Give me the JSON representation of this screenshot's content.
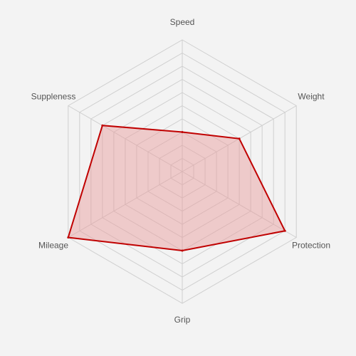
{
  "chart_data": {
    "type": "radar",
    "axes": [
      "Speed",
      "Weight",
      "Protection",
      "Grip",
      "Mileage",
      "Suppleness"
    ],
    "series": [
      {
        "values": [
          3,
          5,
          9,
          6,
          10,
          7
        ]
      }
    ],
    "range": [
      0,
      10
    ],
    "grid_levels": 10,
    "grid": true,
    "legend": "none",
    "colors": {
      "background": "#f3f3f3",
      "grid": "#cfcfcf",
      "series_stroke": "#c00000",
      "series_fill": "#e89a9a",
      "label": "#555555"
    }
  }
}
